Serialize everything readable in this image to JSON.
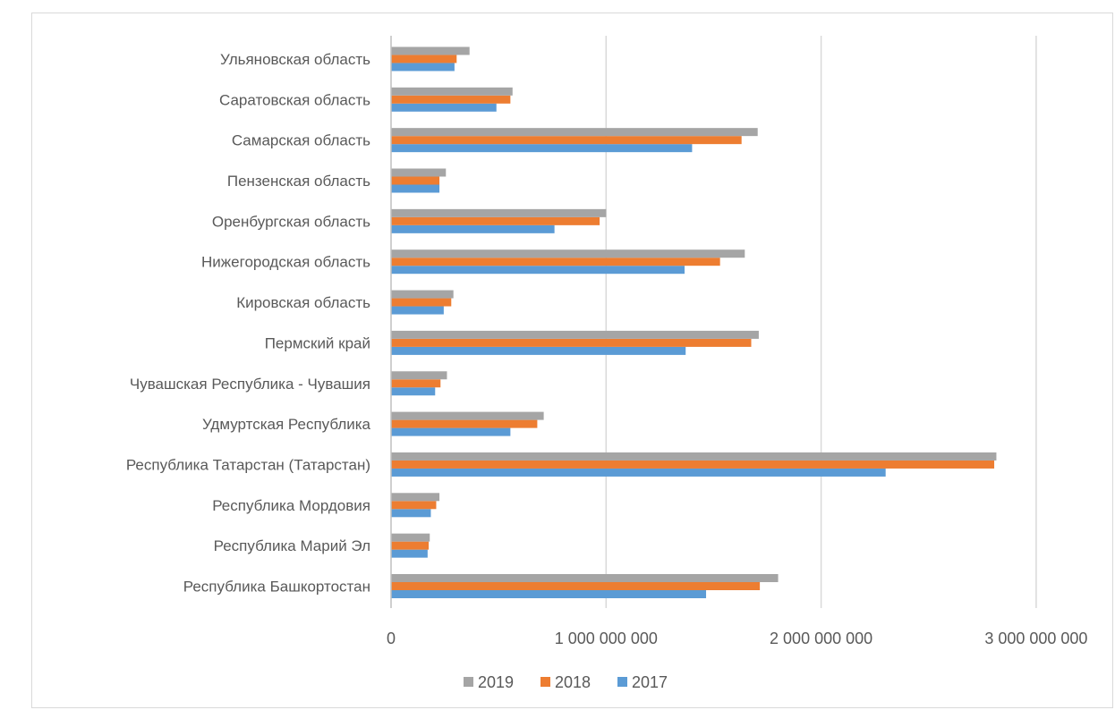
{
  "chart_data": {
    "type": "bar",
    "orientation": "horizontal",
    "categories": [
      "Республика Башкортостан",
      "Республика Марий Эл",
      "Республика Мордовия",
      "Республика Татарстан (Татарстан)",
      "Удмуртская Республика",
      "Чувашская Республика - Чувашия",
      "Пермский край",
      "Кировская область",
      "Нижегородская область",
      "Оренбургская область",
      "Пензенская область",
      "Самарская область",
      "Саратовская область",
      "Ульяновская область"
    ],
    "series": [
      {
        "name": "2017",
        "color": "#5b9bd5",
        "values": [
          1465000000,
          170000000,
          185000000,
          2300000000,
          555000000,
          205000000,
          1370000000,
          245000000,
          1365000000,
          760000000,
          225000000,
          1400000000,
          490000000,
          295000000
        ]
      },
      {
        "name": "2018",
        "color": "#ed7d31",
        "values": [
          1715000000,
          175000000,
          210000000,
          2805000000,
          680000000,
          230000000,
          1675000000,
          280000000,
          1530000000,
          970000000,
          225000000,
          1630000000,
          555000000,
          305000000
        ]
      },
      {
        "name": "2019",
        "color": "#a5a5a5",
        "values": [
          1800000000,
          180000000,
          225000000,
          2815000000,
          710000000,
          260000000,
          1710000000,
          290000000,
          1645000000,
          1000000000,
          255000000,
          1705000000,
          565000000,
          365000000
        ]
      }
    ],
    "legend_order": [
      "2019",
      "2018",
      "2017"
    ],
    "x_ticks": [
      {
        "value": 0,
        "label": "0"
      },
      {
        "value": 1000000000,
        "label": "1 000 000 000"
      },
      {
        "value": 2000000000,
        "label": "2 000 000 000"
      },
      {
        "value": 3000000000,
        "label": "3 000 000 000"
      }
    ],
    "xlim": [
      0,
      3000000000
    ],
    "title": "",
    "xlabel": "",
    "ylabel": "",
    "grid": "vertical",
    "legend_position": "bottom",
    "gridline_color": "#d9d9d9",
    "axis_color": "#bfbfbf"
  }
}
